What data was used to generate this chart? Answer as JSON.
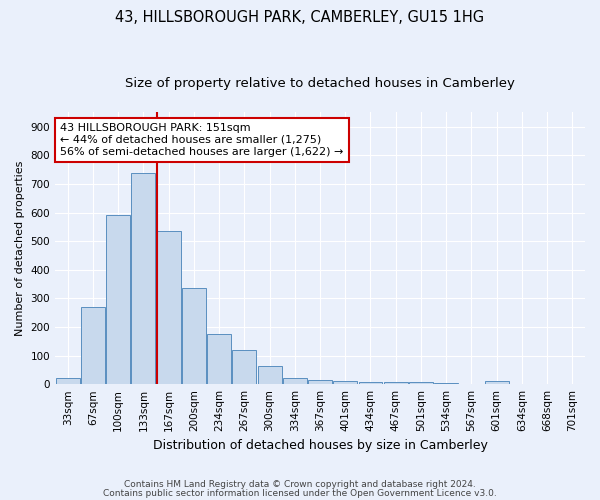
{
  "title": "43, HILLSBOROUGH PARK, CAMBERLEY, GU15 1HG",
  "subtitle": "Size of property relative to detached houses in Camberley",
  "xlabel": "Distribution of detached houses by size in Camberley",
  "ylabel": "Number of detached properties",
  "categories": [
    "33sqm",
    "67sqm",
    "100sqm",
    "133sqm",
    "167sqm",
    "200sqm",
    "234sqm",
    "267sqm",
    "300sqm",
    "334sqm",
    "367sqm",
    "401sqm",
    "434sqm",
    "467sqm",
    "501sqm",
    "534sqm",
    "567sqm",
    "601sqm",
    "634sqm",
    "668sqm",
    "701sqm"
  ],
  "values": [
    20,
    270,
    590,
    740,
    535,
    335,
    175,
    120,
    65,
    22,
    14,
    12,
    8,
    7,
    7,
    5,
    1,
    10,
    1,
    1,
    1
  ],
  "bar_color": "#c8d9ed",
  "bar_edge_color": "#5a8fc0",
  "red_line_x": 3.53,
  "annotation_text": "43 HILLSBOROUGH PARK: 151sqm\n← 44% of detached houses are smaller (1,275)\n56% of semi-detached houses are larger (1,622) →",
  "annotation_box_color": "#ffffff",
  "annotation_box_edge": "#cc0000",
  "red_line_color": "#cc0000",
  "ylim": [
    0,
    950
  ],
  "yticks": [
    0,
    100,
    200,
    300,
    400,
    500,
    600,
    700,
    800,
    900
  ],
  "footer1": "Contains HM Land Registry data © Crown copyright and database right 2024.",
  "footer2": "Contains public sector information licensed under the Open Government Licence v3.0.",
  "background_color": "#eaf0fb",
  "plot_bg_color": "#eaf0fb",
  "title_fontsize": 10.5,
  "subtitle_fontsize": 9.5,
  "tick_fontsize": 7.5,
  "ylabel_fontsize": 8,
  "xlabel_fontsize": 9,
  "annotation_fontsize": 8,
  "footer_fontsize": 6.5,
  "bar_width": 0.95
}
